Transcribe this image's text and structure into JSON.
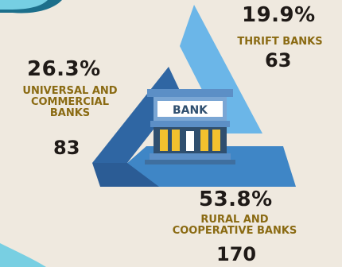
{
  "chart_data": {
    "type": "pie",
    "slices": [
      {
        "label": "UNIVERSAL AND COMMERCIAL BANKS",
        "percent": 26.3,
        "count": 83,
        "percent_text": "26.3%",
        "count_text": "83"
      },
      {
        "label": "THRIFT BANKS",
        "percent": 19.9,
        "count": 63,
        "percent_text": "19.9%",
        "count_text": "63"
      },
      {
        "label": "RURAL AND COOPERATIVE BANKS",
        "percent": 53.8,
        "count": 170,
        "percent_text": "53.8%",
        "count_text": "170"
      }
    ],
    "center_label": "BANK"
  },
  "colors": {
    "background": "#efe9df",
    "dark_blue": "#2f66a3",
    "mid_blue": "#3f86c6",
    "light_blue": "#6bb6e8",
    "label_gold": "#8a6a12",
    "bank_roof": "#5c8fc6",
    "bank_columns": "#f2c12e"
  }
}
